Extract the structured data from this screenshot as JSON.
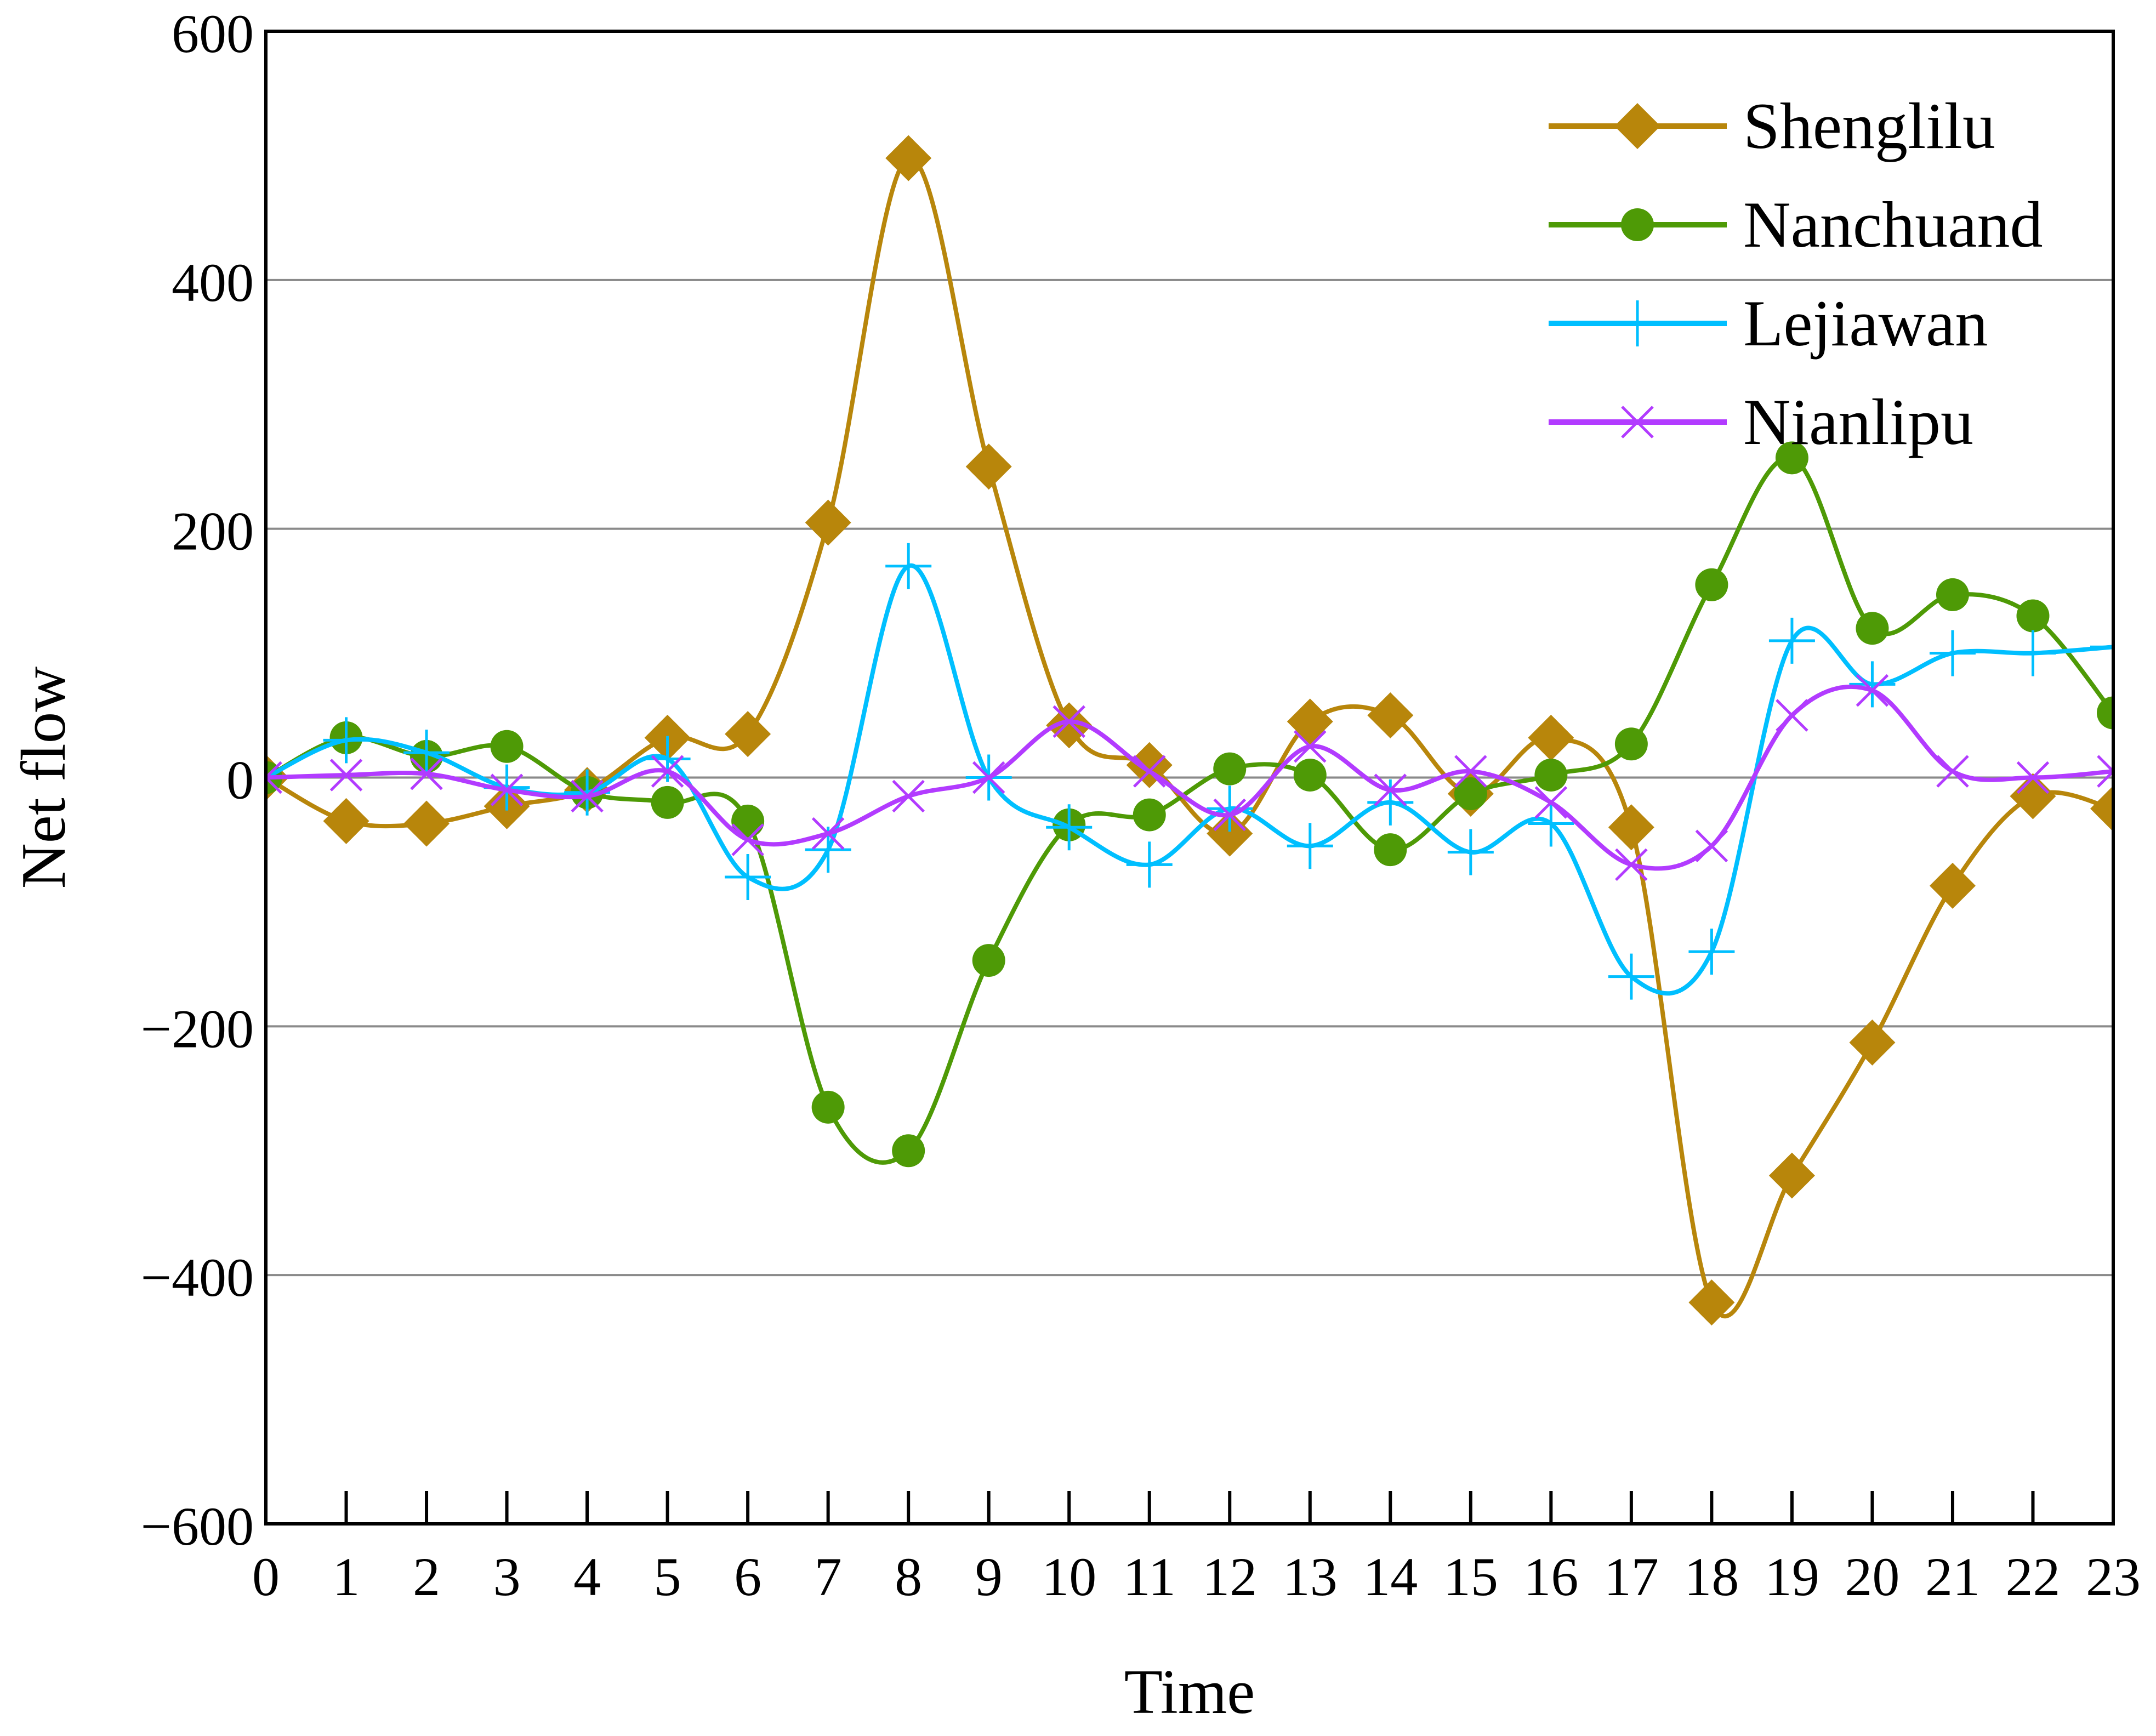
{
  "chart_data": {
    "type": "line",
    "title": "",
    "xlabel": "Time",
    "ylabel": "Net flow",
    "xlim": [
      0,
      23
    ],
    "ylim": [
      -600,
      600
    ],
    "x": [
      0,
      1,
      2,
      3,
      4,
      5,
      6,
      7,
      8,
      9,
      10,
      11,
      12,
      13,
      14,
      15,
      16,
      17,
      18,
      19,
      20,
      21,
      22,
      23
    ],
    "xticks": [
      "0",
      "1",
      "2",
      "3",
      "4",
      "5",
      "6",
      "7",
      "8",
      "9",
      "10",
      "11",
      "12",
      "13",
      "14",
      "15",
      "16",
      "17",
      "18",
      "19",
      "20",
      "21",
      "22",
      "23"
    ],
    "yticks": [
      {
        "value": 600,
        "label": "600"
      },
      {
        "value": 400,
        "label": "400"
      },
      {
        "value": 200,
        "label": "200"
      },
      {
        "value": 0,
        "label": "0"
      },
      {
        "value": -200,
        "label": "−200"
      },
      {
        "value": -400,
        "label": "−400"
      },
      {
        "value": -600,
        "label": "−600"
      }
    ],
    "grid": "horizontal",
    "legend_position": "top-right",
    "series": [
      {
        "name": "Shenglilu",
        "color": "#B8860B",
        "marker": "diamond",
        "values": [
          0,
          -35,
          -37,
          -23,
          -10,
          32,
          35,
          205,
          498,
          250,
          42,
          10,
          -45,
          45,
          50,
          -13,
          32,
          -40,
          -422,
          -320,
          -213,
          -87,
          -15,
          -25
        ]
      },
      {
        "name": "Nanchuand",
        "color": "#4E9A06",
        "marker": "circle",
        "values": [
          0,
          32,
          17,
          25,
          -12,
          -20,
          -35,
          -265,
          -300,
          -147,
          -38,
          -30,
          7,
          2,
          -58,
          -13,
          2,
          27,
          155,
          257,
          120,
          147,
          130,
          52
        ]
      },
      {
        "name": "Lejiawan",
        "color": "#00BFFF",
        "marker": "plus",
        "values": [
          0,
          30,
          20,
          -8,
          -12,
          15,
          -80,
          -58,
          170,
          0,
          -40,
          -70,
          -25,
          -55,
          -20,
          -60,
          -37,
          -160,
          -140,
          110,
          75,
          100,
          100,
          105
        ]
      },
      {
        "name": "Nianlipu",
        "color": "#B23BFF",
        "marker": "x",
        "values": [
          0,
          2,
          3,
          -10,
          -15,
          5,
          -50,
          -45,
          -15,
          0,
          45,
          5,
          -30,
          25,
          -10,
          5,
          -20,
          -70,
          -55,
          50,
          70,
          5,
          0,
          5
        ]
      }
    ]
  }
}
